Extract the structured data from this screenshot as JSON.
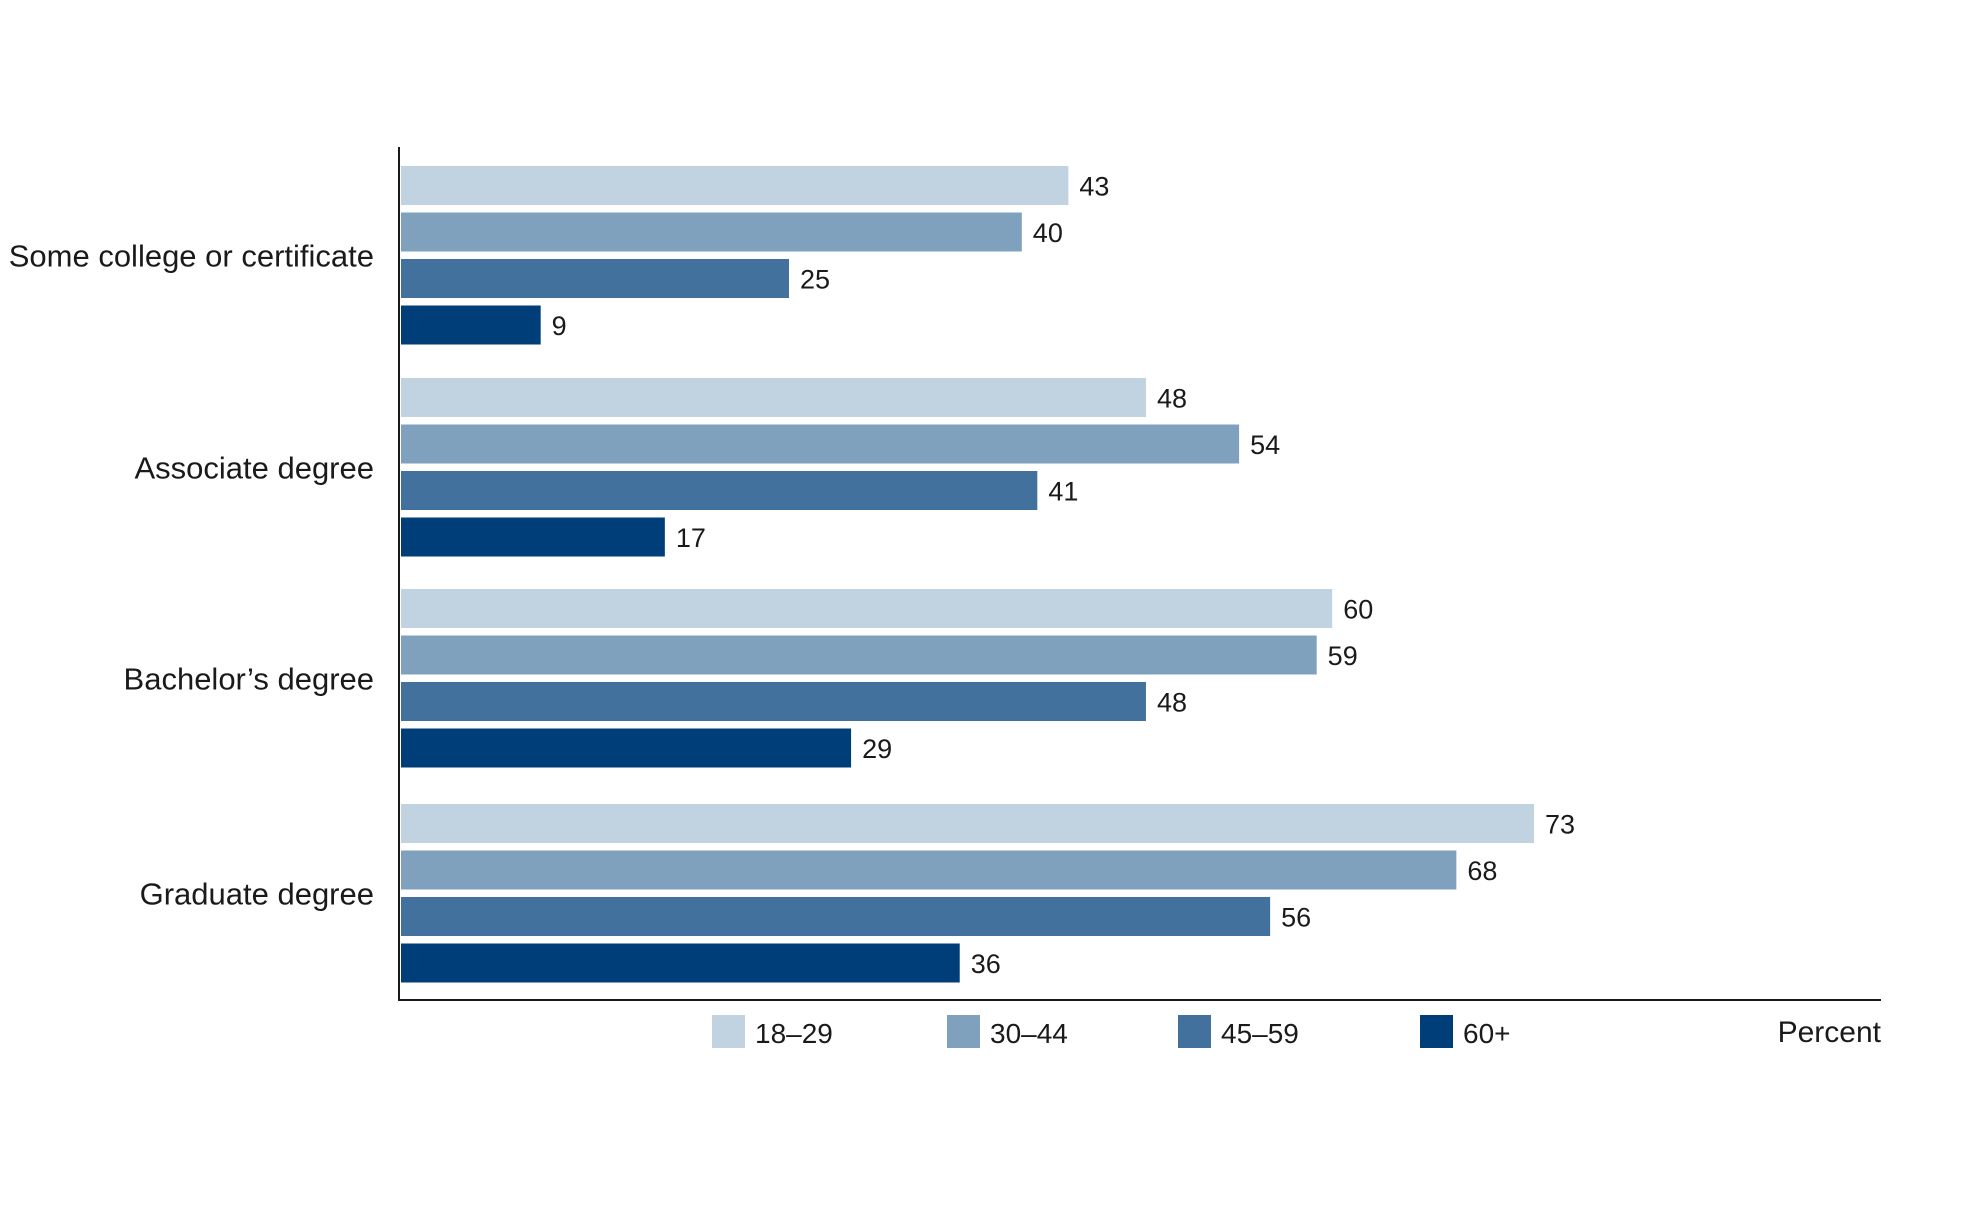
{
  "chart_data": {
    "type": "bar",
    "orientation": "horizontal",
    "categories": [
      "Some college or certificate",
      "Associate degree",
      "Bachelor’s degree",
      "Graduate degree"
    ],
    "series": [
      {
        "name": "18–29",
        "color": "#c1d2e0",
        "values": [
          43,
          48,
          60,
          73
        ]
      },
      {
        "name": "30–44",
        "color": "#7fa1be",
        "values": [
          40,
          54,
          59,
          68
        ]
      },
      {
        "name": "45–59",
        "color": "#41719c",
        "values": [
          25,
          41,
          48,
          56
        ]
      },
      {
        "name": "60+",
        "color": "#003e7a",
        "values": [
          9,
          17,
          29,
          36
        ]
      }
    ],
    "xlabel": "Percent",
    "xlim": [
      0,
      75
    ],
    "grid": false,
    "legend_position": "bottom"
  }
}
